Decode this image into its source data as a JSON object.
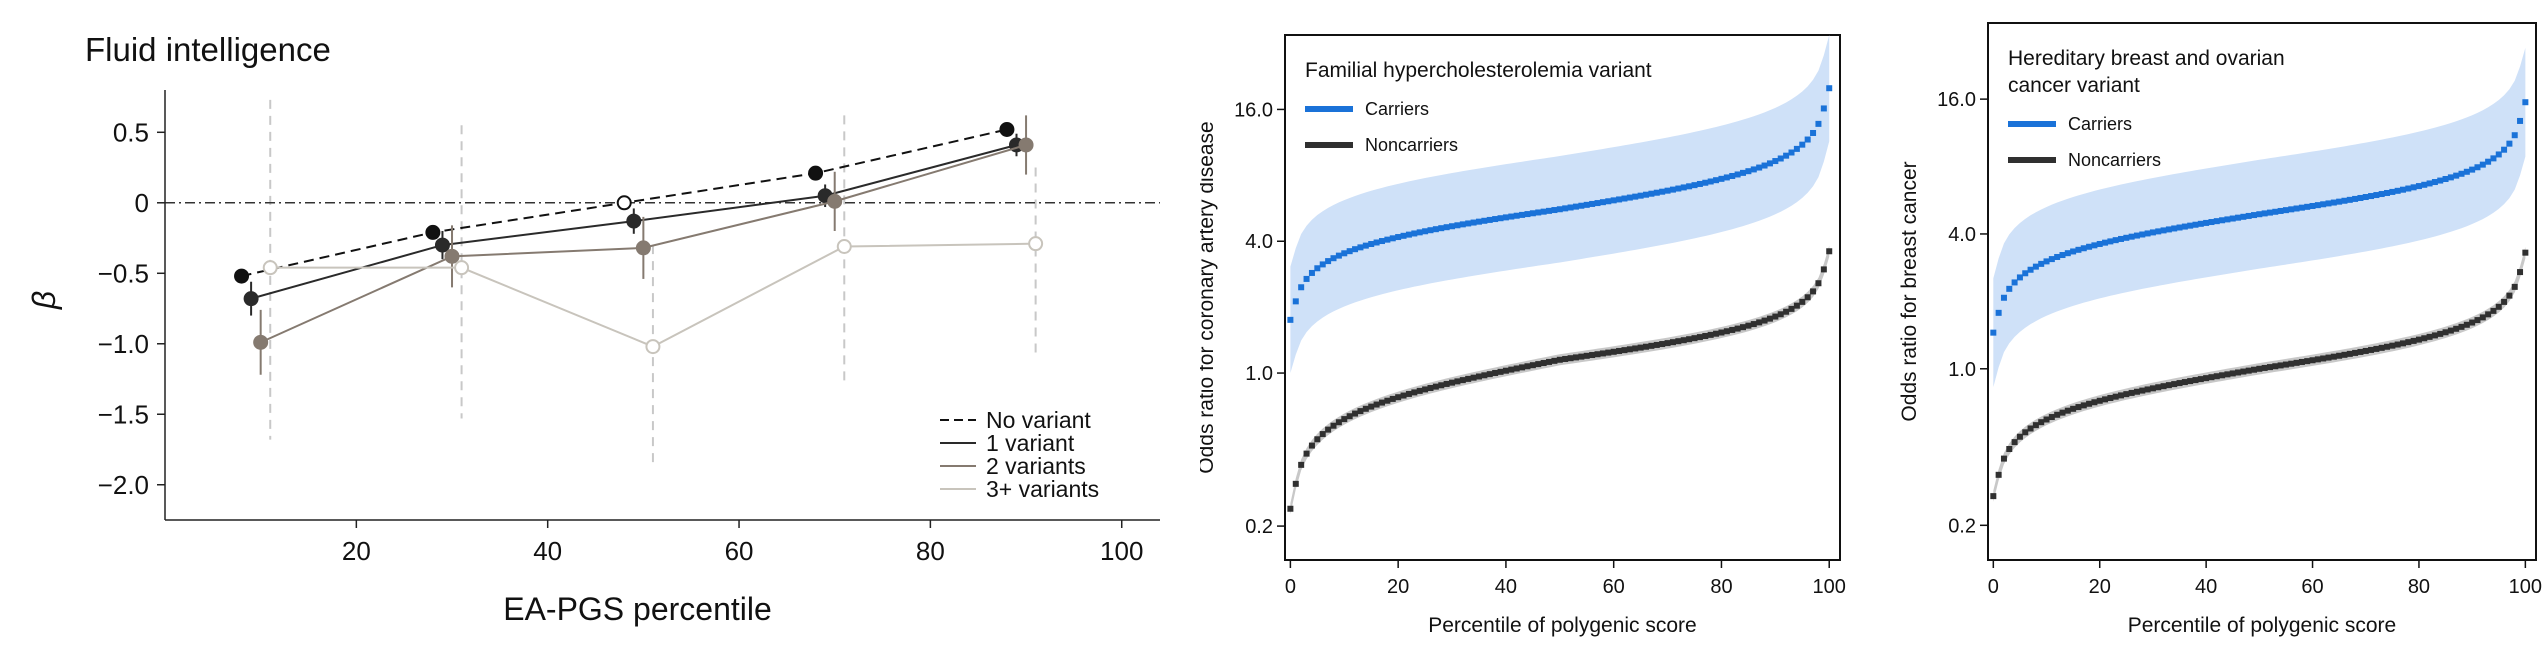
{
  "chart_data": [
    {
      "type": "line",
      "title": "Fluid intelligence",
      "xlabel": "EA-PGS percentile",
      "ylabel": "β",
      "xlim": [
        0,
        104
      ],
      "ylim": [
        -2.25,
        0.8
      ],
      "xticks": [
        20,
        40,
        60,
        80,
        100
      ],
      "yticks": [
        0.5,
        0,
        -0.5,
        -1.0,
        -1.5,
        -2.0
      ],
      "ytick_labels": [
        "0.5",
        "0",
        "−0.5",
        "−1.0",
        "−1.5",
        "−2.0"
      ],
      "reference_line": 0,
      "legend_position": "bottom-right",
      "series": [
        {
          "name": "No variant",
          "color": "#111111",
          "dash": "dashed",
          "marker": "filled",
          "x": [
            8,
            28,
            48,
            68,
            88
          ],
          "y": [
            -0.52,
            -0.21,
            0.0,
            0.21,
            0.52
          ],
          "ci": [
            [
              -0.52,
              -0.52
            ],
            [
              -0.21,
              -0.21
            ],
            [
              0.0,
              0.0
            ],
            [
              0.21,
              0.21
            ],
            [
              0.52,
              0.52
            ]
          ],
          "open_markers": [
            false,
            false,
            true,
            false,
            false
          ]
        },
        {
          "name": "1 variant",
          "color": "#2a2a2a",
          "dash": "solid",
          "marker": "filled",
          "x": [
            9,
            29,
            49,
            69,
            89
          ],
          "y": [
            -0.68,
            -0.3,
            -0.13,
            0.05,
            0.41
          ],
          "ci": [
            [
              -0.8,
              -0.56
            ],
            [
              -0.4,
              -0.2
            ],
            [
              -0.22,
              -0.04
            ],
            [
              -0.03,
              0.13
            ],
            [
              0.33,
              0.49
            ]
          ],
          "open_markers": [
            false,
            false,
            false,
            false,
            false
          ]
        },
        {
          "name": "2 variants",
          "color": "#857a70",
          "dash": "solid",
          "marker": "filled",
          "x": [
            10,
            30,
            50,
            70,
            90
          ],
          "y": [
            -0.99,
            -0.38,
            -0.32,
            0.01,
            0.41
          ],
          "ci": [
            [
              -1.22,
              -0.76
            ],
            [
              -0.6,
              -0.16
            ],
            [
              -0.54,
              -0.1
            ],
            [
              -0.2,
              0.22
            ],
            [
              0.2,
              0.62
            ]
          ],
          "open_markers": [
            false,
            false,
            false,
            false,
            false
          ]
        },
        {
          "name": "3+ variants",
          "color": "#c8c4bc",
          "dash": "solid",
          "marker": "open",
          "x": [
            11,
            31,
            51,
            71,
            91
          ],
          "y": [
            -0.46,
            -0.46,
            -1.02,
            -0.31,
            -0.29
          ],
          "ci": [
            [
              -0.46,
              -0.46
            ],
            [
              -0.46,
              -0.46
            ],
            [
              -1.02,
              -1.02
            ],
            [
              -0.31,
              -0.31
            ],
            [
              -0.29,
              -0.29
            ]
          ],
          "open_markers": [
            true,
            true,
            true,
            true,
            true
          ]
        }
      ],
      "dashed_verticals": [
        {
          "x": 11,
          "from": -1.68,
          "to": 0.73
        },
        {
          "x": 31,
          "from": -1.53,
          "to": 0.55
        },
        {
          "x": 51,
          "from": -1.88,
          "to": -0.3
        },
        {
          "x": 71,
          "from": -1.27,
          "to": 0.62
        },
        {
          "x": 91,
          "from": -1.07,
          "to": 0.25
        }
      ]
    },
    {
      "type": "scatter",
      "title": "Familial hypercholesterolemia variant",
      "xlabel": "Percentile of polygenic score",
      "ylabel": "Odds ratio for coronary artery disease",
      "xlim": [
        -1,
        102
      ],
      "ylog": true,
      "ylim": [
        0.14,
        35
      ],
      "xticks": [
        0,
        20,
        40,
        60,
        80,
        100
      ],
      "yticks": [
        0.2,
        1.0,
        4.0,
        16.0
      ],
      "ytick_labels": [
        "0.2",
        "1.0",
        "4.0",
        "16.0"
      ],
      "legend_position": "top-left",
      "series": [
        {
          "name": "Carriers",
          "color": "#1a72d8",
          "band_color": "#cfe1f8",
          "or_at_50": 5.6,
          "or_at_0": 1.75,
          "or_at_100": 20.0,
          "band_factor": 1.75
        },
        {
          "name": "Noncarriers",
          "color": "#303030",
          "band_color": "#c8c8c8",
          "or_at_50": 1.15,
          "or_at_0": 0.24,
          "or_at_100": 3.6,
          "band_factor": 1.06
        }
      ]
    },
    {
      "type": "scatter",
      "title_lines": [
        "Hereditary breast and ovarian",
        "cancer variant"
      ],
      "xlabel": "Percentile of polygenic score",
      "ylabel": "Odds ratio for breast cancer",
      "xlim": [
        -1,
        102
      ],
      "ylog": true,
      "ylim": [
        0.14,
        35
      ],
      "xticks": [
        0,
        20,
        40,
        60,
        80,
        100
      ],
      "yticks": [
        0.2,
        1.0,
        4.0,
        16.0
      ],
      "ytick_labels": [
        "0.2",
        "1.0",
        "4.0",
        "16.0"
      ],
      "legend_position": "top-left",
      "series": [
        {
          "name": "Carriers",
          "color": "#1a72d8",
          "band_color": "#cfe1f8",
          "or_at_50": 4.9,
          "or_at_0": 1.45,
          "or_at_100": 15.5,
          "band_factor": 1.75
        },
        {
          "name": "Noncarriers",
          "color": "#303030",
          "band_color": "#c8c8c8",
          "or_at_50": 1.0,
          "or_at_0": 0.27,
          "or_at_100": 3.3,
          "band_factor": 1.06
        }
      ]
    }
  ]
}
